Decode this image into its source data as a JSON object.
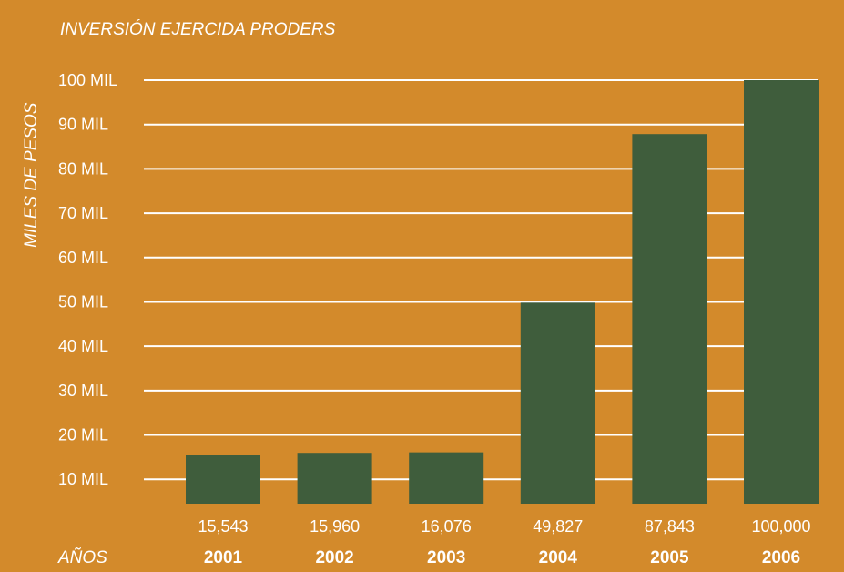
{
  "chart_data": {
    "type": "bar",
    "title": "INVERSIÓN EJERCIDA PRODERS",
    "ylabel": "MILES DE PESOS",
    "xlabel": "AÑOS",
    "categories": [
      "2001",
      "2002",
      "2003",
      "2004",
      "2005",
      "2006"
    ],
    "values": [
      15543,
      15960,
      16076,
      49827,
      87843,
      100000
    ],
    "value_labels": [
      "15,543",
      "15,960",
      "16,076",
      "49,827",
      "87,843",
      "100,000"
    ],
    "y_ticks": [
      {
        "value": 10000,
        "label": "10 MIL"
      },
      {
        "value": 20000,
        "label": "20 MIL"
      },
      {
        "value": 30000,
        "label": "30 MIL"
      },
      {
        "value": 40000,
        "label": "40 MIL"
      },
      {
        "value": 50000,
        "label": "50 MIL"
      },
      {
        "value": 60000,
        "label": "60 MIL"
      },
      {
        "value": 70000,
        "label": "70 MIL"
      },
      {
        "value": 80000,
        "label": "80 MIL"
      },
      {
        "value": 90000,
        "label": "90 MIL"
      },
      {
        "value": 100000,
        "label": "100 MIL"
      }
    ],
    "ylim": [
      4500,
      100000
    ],
    "grid": true,
    "colors": {
      "background": "#d38a2b",
      "bar": "#3f5d3c",
      "grid": "#ffffff",
      "text": "#ffffff"
    }
  }
}
